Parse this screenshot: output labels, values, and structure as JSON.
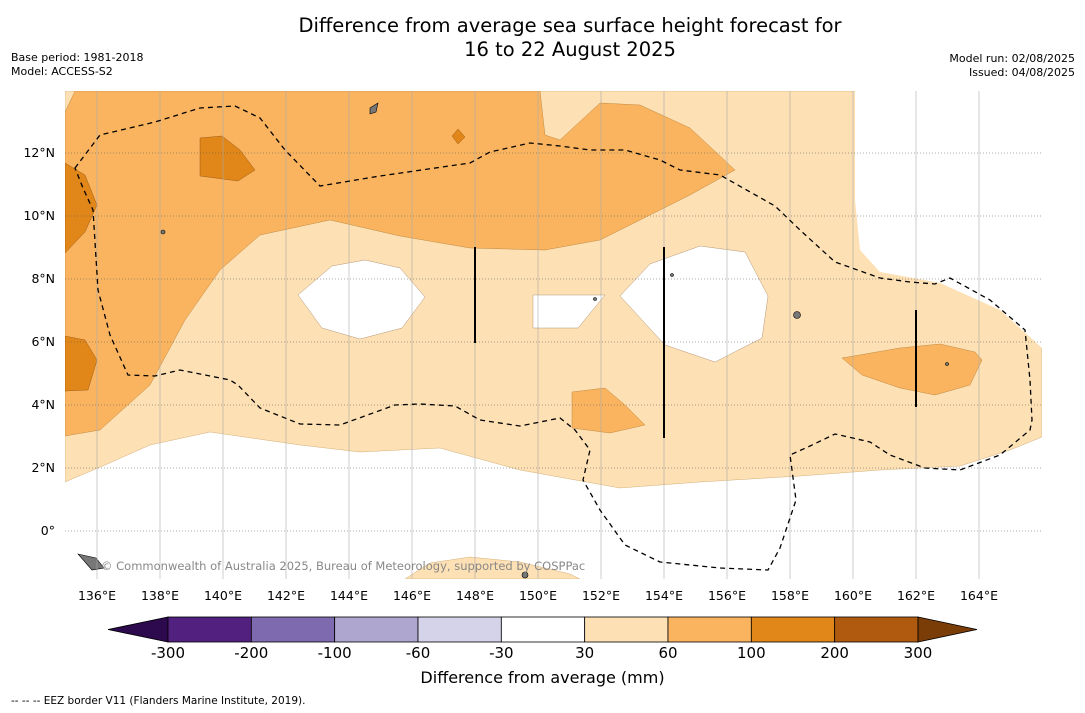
{
  "header": {
    "title_line1": "Difference from average sea surface height forecast for",
    "title_line2": "16 to 22 August 2025",
    "base_period": "Base period: 1981-2018",
    "model": "Model: ACCESS-S2",
    "model_run": "Model run: 02/08/2025",
    "issued": "Issued: 04/08/2025"
  },
  "map": {
    "lat_labels": [
      "12°N",
      "10°N",
      "8°N",
      "6°N",
      "4°N",
      "2°N",
      "0°"
    ],
    "lon_labels": [
      "136°E",
      "138°E",
      "140°E",
      "142°E",
      "144°E",
      "146°E",
      "148°E",
      "150°E",
      "152°E",
      "154°E",
      "156°E",
      "158°E",
      "160°E",
      "162°E",
      "164°E"
    ],
    "credit": "© Commonwealth of Australia 2025, Bureau of Meteorology, supported by COSPPac",
    "eez_style": "dashed"
  },
  "colorbar": {
    "ticks": [
      "-300",
      "-200",
      "-100",
      "-60",
      "-30",
      "30",
      "60",
      "100",
      "200",
      "300"
    ],
    "colors": [
      "#52207f",
      "#7e6aae",
      "#afa6cf",
      "#d4d3ea",
      "#ffffff",
      "#fde0b4",
      "#fab460",
      "#e18619",
      "#b05a10"
    ],
    "under_color": "#2d0a4e",
    "over_color": "#7a3d08",
    "label": "Difference from average (mm)"
  },
  "footer": {
    "eez_note": "--  --  -- EEZ border V11 (Flanders Marine Institute, 2019)."
  }
}
